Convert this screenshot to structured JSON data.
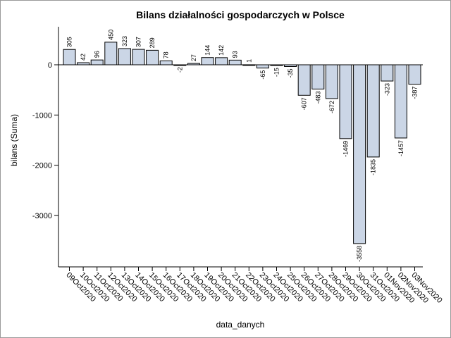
{
  "chart_data": {
    "type": "bar",
    "title": "Bilans działalności gospodarczych w Polsce",
    "xlabel": "data_danych",
    "ylabel": "bilans (Suma)",
    "categories": [
      "09Oct2020",
      "10Oct2020",
      "11Oct2020",
      "12Oct2020",
      "13Oct2020",
      "14Oct2020",
      "15Oct2020",
      "16Oct2020",
      "17Oct2020",
      "18Oct2020",
      "19Oct2020",
      "20Oct2020",
      "21Oct2020",
      "22Oct2020",
      "23Oct2020",
      "24Oct2020",
      "25Oct2020",
      "26Oct2020",
      "27Oct2020",
      "28Oct2020",
      "29Oct2020",
      "30Oct2020",
      "31Oct2020",
      "01Nov2020",
      "02Nov2020",
      "03Nov2020"
    ],
    "values": [
      305,
      42,
      96,
      450,
      323,
      307,
      289,
      78,
      -2,
      27,
      144,
      142,
      93,
      1,
      -65,
      -15,
      -35,
      -607,
      -483,
      -672,
      -1469,
      -3558,
      -1835,
      -323,
      -1457,
      -387
    ],
    "value_labels": [
      "305",
      "42",
      "96",
      "450",
      "323",
      "307",
      "289",
      "78",
      "-2",
      "27",
      "144",
      "142",
      "93",
      "1",
      "-65",
      "-15",
      "-35",
      "-607",
      "-483",
      "-672",
      "-1469",
      "-3558",
      "-1835",
      "-323",
      "-1457",
      "-387"
    ],
    "y_ticks": [
      0,
      -1000,
      -2000,
      -3000
    ],
    "y_tick_labels": [
      "0",
      "-1000",
      "-2000",
      "-3000"
    ],
    "ylim": [
      -4000,
      700
    ],
    "reference_line": 0,
    "grid": false,
    "legend": "none",
    "bar_fill": "#cbd6e6",
    "bar_stroke": "#000000"
  }
}
